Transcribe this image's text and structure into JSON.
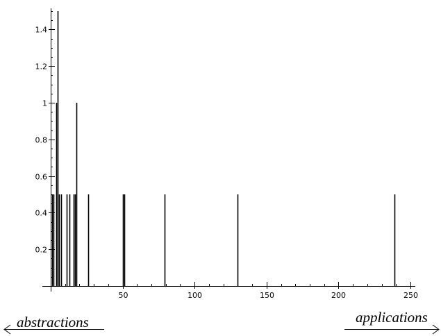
{
  "chart_data": {
    "type": "bar",
    "title": "",
    "xlabel": "",
    "ylabel": "",
    "xlim": [
      0,
      250
    ],
    "ylim": [
      0,
      1.5
    ],
    "x_ticks": [
      50,
      100,
      150,
      200,
      250
    ],
    "y_ticks": [
      0.2,
      0.4,
      0.6,
      0.8,
      1,
      1.2,
      1.4
    ],
    "grid": false,
    "bars": [
      {
        "x": 1,
        "y": 0.5
      },
      {
        "x": 2,
        "y": 0.5
      },
      {
        "x": 4,
        "y": 1
      },
      {
        "x": 5,
        "y": 1.5
      },
      {
        "x": 6,
        "y": 0.5
      },
      {
        "x": 7,
        "y": 0.5
      },
      {
        "x": 11,
        "y": 0.5
      },
      {
        "x": 13,
        "y": 0.5
      },
      {
        "x": 16,
        "y": 0.5
      },
      {
        "x": 17,
        "y": 0.5
      },
      {
        "x": 18,
        "y": 1
      },
      {
        "x": 26,
        "y": 0.5
      },
      {
        "x": 50,
        "y": 0.5
      },
      {
        "x": 51,
        "y": 0.5
      },
      {
        "x": 79,
        "y": 0.5
      },
      {
        "x": 130,
        "y": 0.5
      },
      {
        "x": 239,
        "y": 0.5
      }
    ]
  },
  "annotations": {
    "left": "abstractions",
    "right": "applications"
  }
}
